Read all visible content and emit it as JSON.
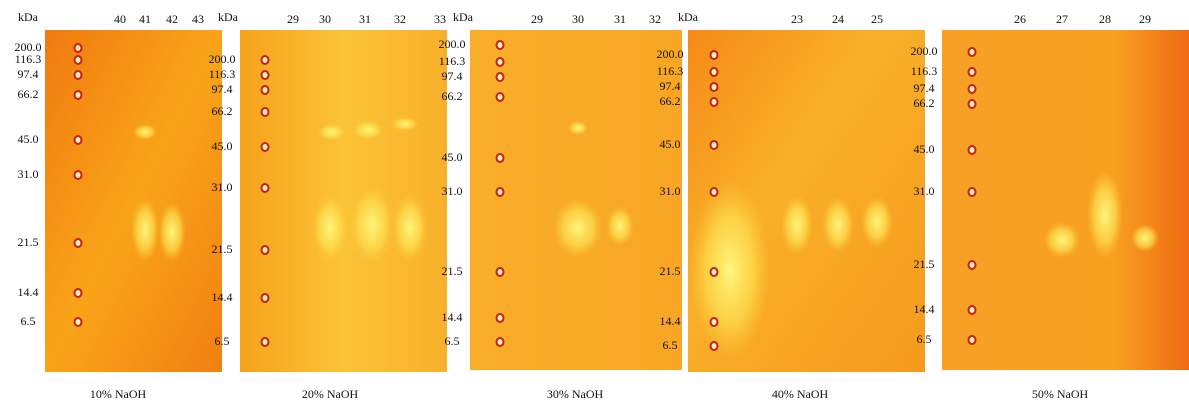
{
  "panels": [
    {
      "unit": "kDa",
      "lanes": [
        "40",
        "41",
        "42",
        "43"
      ],
      "markers": [
        "200.0",
        "116.3",
        "97.4",
        "66.2",
        "45.0",
        "31.0",
        "21.5",
        "14.4",
        "6.5"
      ],
      "caption": "10% NaOH"
    },
    {
      "unit": "kDa",
      "lanes": [
        "29",
        "30",
        "31",
        "32",
        "33"
      ],
      "markers": [
        "200.0",
        "116.3",
        "97.4",
        "66.2",
        "45.0",
        "31.0",
        "21.5",
        "14.4",
        "6.5"
      ],
      "caption": "20% NaOH"
    },
    {
      "unit": "kDa",
      "lanes": [
        "29",
        "30",
        "31",
        "32"
      ],
      "markers": [
        "200.0",
        "116.3",
        "97.4",
        "66.2",
        "45.0",
        "31.0",
        "21.5",
        "14.4",
        "6.5"
      ],
      "caption": "30% NaOH"
    },
    {
      "unit": "kDa",
      "lanes": [
        "23",
        "24",
        "25"
      ],
      "markers": [
        "200.0",
        "116.3",
        "97.4",
        "66.2",
        "45.0",
        "31.0",
        "21.5",
        "14.4",
        "6.5"
      ],
      "caption": "40% NaOH"
    },
    {
      "lanes": [
        "26",
        "27",
        "28",
        "29"
      ],
      "markers": [
        "200.0",
        "116.3",
        "97.4",
        "66.2",
        "45.0",
        "31.0",
        "21.5",
        "14.4",
        "6.5"
      ],
      "caption": "50% NaOH"
    }
  ]
}
